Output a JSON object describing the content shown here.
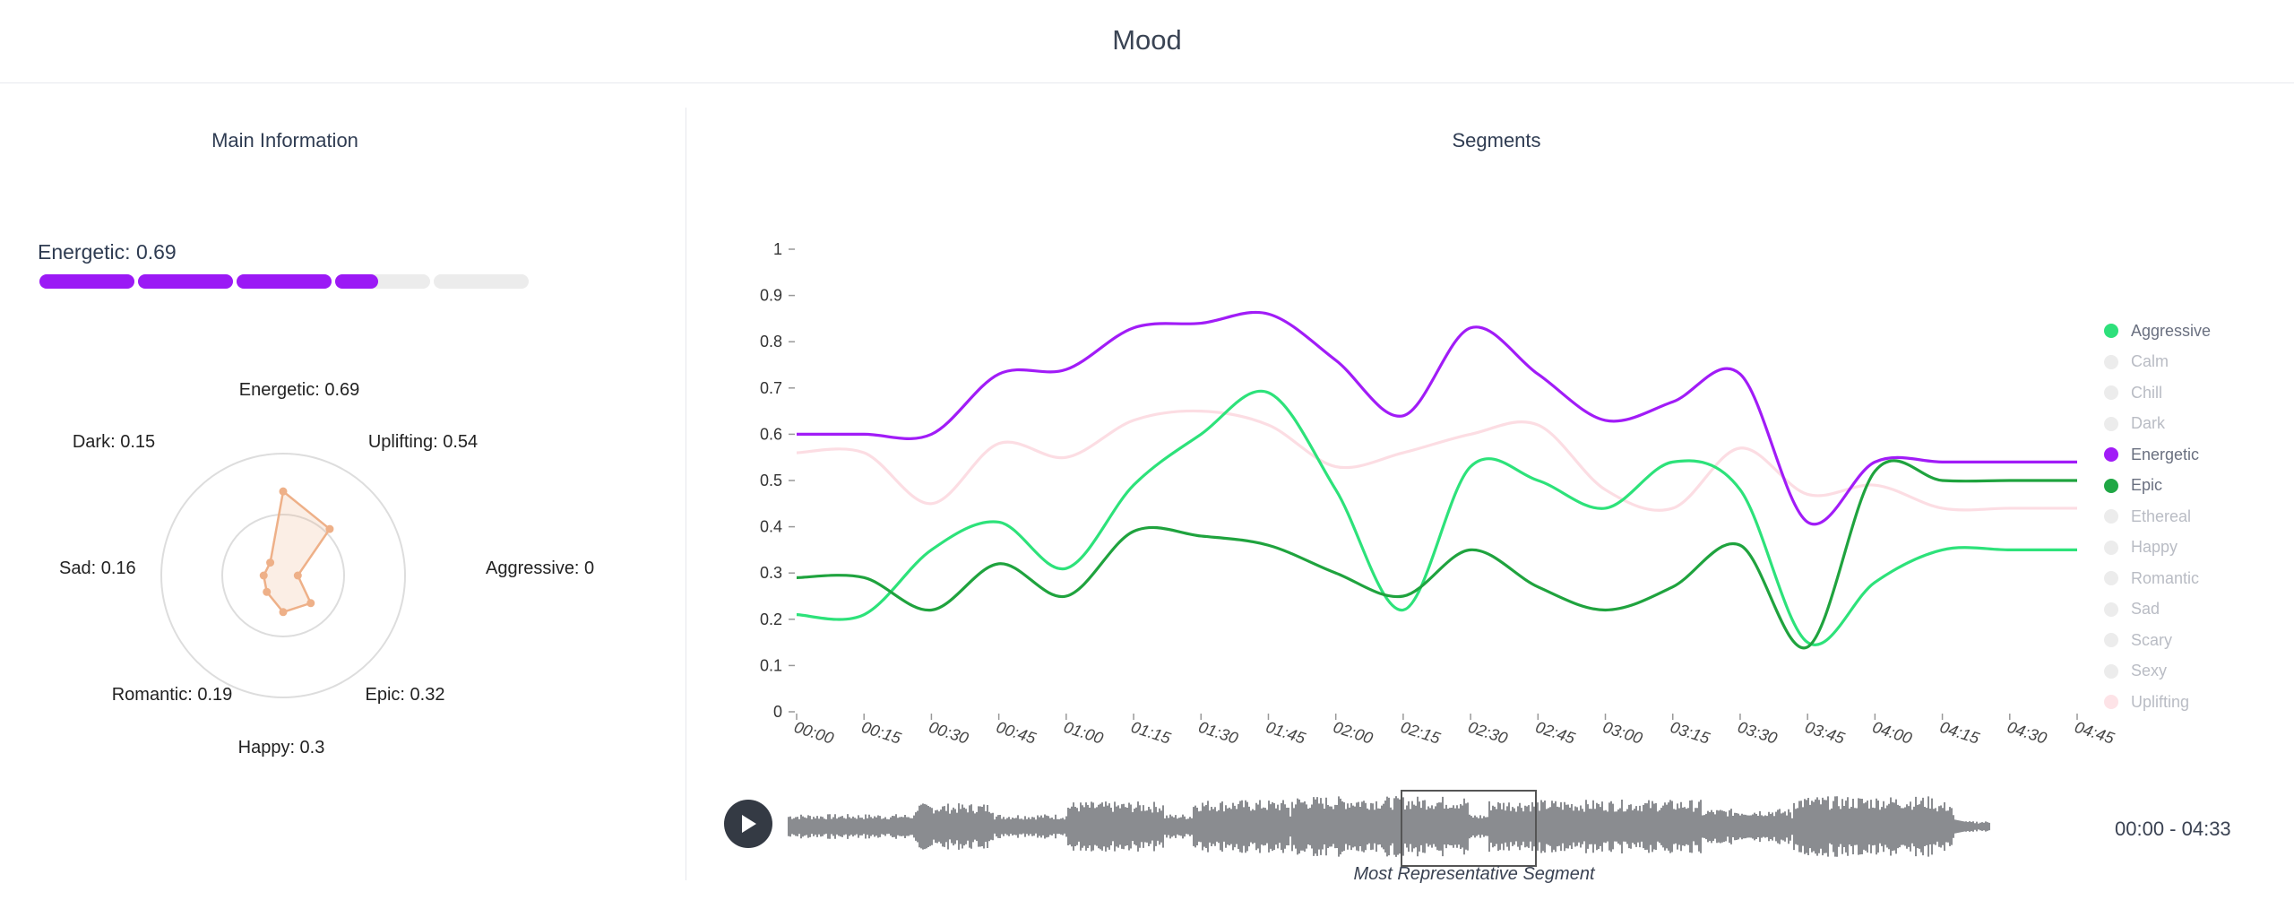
{
  "header": {
    "title": "Mood"
  },
  "main_info": {
    "title": "Main Information",
    "main_mood_label": "Energetic: 0.69",
    "meter": {
      "segments": 5,
      "fraction": 0.69,
      "color": "#9b19f5",
      "track_color": "#ececec"
    }
  },
  "radar": {
    "labels": [
      {
        "name": "Energetic",
        "value": 0.69,
        "text": "Energetic: 0.69"
      },
      {
        "name": "Uplifting",
        "value": 0.54,
        "text": "Uplifting: 0.54"
      },
      {
        "name": "Aggressive",
        "value": 0,
        "text": "Aggressive: 0"
      },
      {
        "name": "Epic",
        "value": 0.32,
        "text": "Epic: 0.32"
      },
      {
        "name": "Happy",
        "value": 0.3,
        "text": "Happy: 0.3"
      },
      {
        "name": "Romantic",
        "value": 0.19,
        "text": "Romantic: 0.19"
      },
      {
        "name": "Sad",
        "value": 0.16,
        "text": "Sad: 0.16"
      },
      {
        "name": "Dark",
        "value": 0.15,
        "text": "Dark: 0.15"
      }
    ],
    "color": "#eeb088"
  },
  "segments": {
    "title": "Segments",
    "chart_data": {
      "type": "line",
      "x": [
        "00:00",
        "00:15",
        "00:30",
        "00:45",
        "01:00",
        "01:15",
        "01:30",
        "01:45",
        "02:00",
        "02:15",
        "02:30",
        "02:45",
        "03:00",
        "03:15",
        "03:30",
        "03:45",
        "04:00",
        "04:15",
        "04:30",
        "04:45"
      ],
      "yticks": [
        "0",
        "0.1",
        "0.2",
        "0.3",
        "0.4",
        "0.5",
        "0.6",
        "0.7",
        "0.8",
        "0.9",
        "1"
      ],
      "ylim": [
        0,
        1
      ],
      "grid": false,
      "series": [
        {
          "name": "Uplifting",
          "color": "#fcdde3",
          "values": [
            0.56,
            0.56,
            0.45,
            0.58,
            0.55,
            0.63,
            0.65,
            0.62,
            0.53,
            0.56,
            0.6,
            0.62,
            0.48,
            0.44,
            0.57,
            0.47,
            0.49,
            0.44,
            0.44,
            0.44
          ]
        },
        {
          "name": "Aggressive",
          "color": "#2de27a",
          "values": [
            0.21,
            0.21,
            0.35,
            0.41,
            0.31,
            0.49,
            0.6,
            0.69,
            0.48,
            0.22,
            0.53,
            0.5,
            0.44,
            0.54,
            0.48,
            0.15,
            0.28,
            0.35,
            0.35,
            0.35
          ]
        },
        {
          "name": "Epic",
          "color": "#1fa33e",
          "values": [
            0.29,
            0.29,
            0.22,
            0.32,
            0.25,
            0.39,
            0.38,
            0.36,
            0.3,
            0.25,
            0.35,
            0.27,
            0.22,
            0.27,
            0.36,
            0.14,
            0.52,
            0.5,
            0.5,
            0.5
          ]
        },
        {
          "name": "Energetic",
          "color": "#a11cf7",
          "values": [
            0.6,
            0.6,
            0.6,
            0.73,
            0.74,
            0.83,
            0.84,
            0.86,
            0.76,
            0.64,
            0.83,
            0.73,
            0.63,
            0.67,
            0.73,
            0.41,
            0.54,
            0.54,
            0.54,
            0.54
          ]
        }
      ]
    },
    "legend": [
      {
        "label": "Aggressive",
        "color": "#2ee07b",
        "active": true
      },
      {
        "label": "Calm",
        "color": "#ececec",
        "active": false
      },
      {
        "label": "Chill",
        "color": "#ececec",
        "active": false
      },
      {
        "label": "Dark",
        "color": "#ececec",
        "active": false
      },
      {
        "label": "Energetic",
        "color": "#a11cf7",
        "active": true
      },
      {
        "label": "Epic",
        "color": "#20a745",
        "active": true
      },
      {
        "label": "Ethereal",
        "color": "#ececec",
        "active": false
      },
      {
        "label": "Happy",
        "color": "#ececec",
        "active": false
      },
      {
        "label": "Romantic",
        "color": "#ececec",
        "active": false
      },
      {
        "label": "Sad",
        "color": "#ececec",
        "active": false
      },
      {
        "label": "Scary",
        "color": "#ececec",
        "active": false
      },
      {
        "label": "Sexy",
        "color": "#ececec",
        "active": false
      },
      {
        "label": "Uplifting",
        "color": "#fde3e7",
        "active": false
      }
    ]
  },
  "player": {
    "play_icon": "play-icon",
    "time_range": "00:00 - 04:33",
    "representative_label": "Most Representative Segment"
  }
}
